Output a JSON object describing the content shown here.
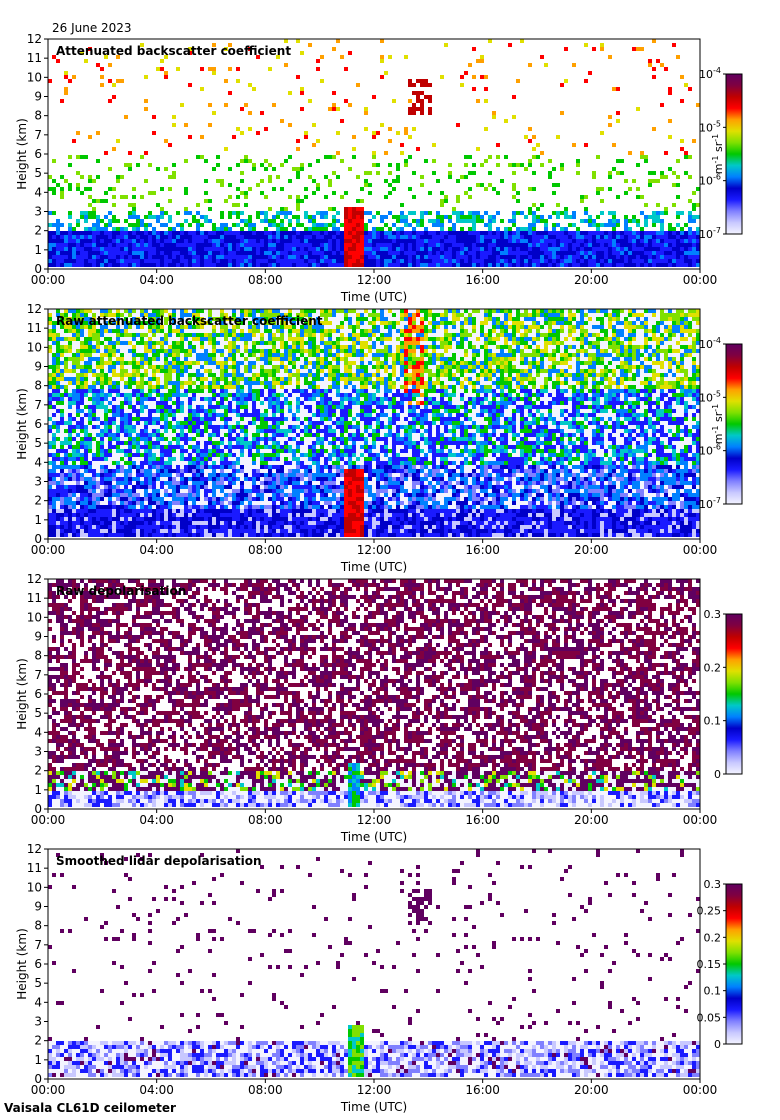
{
  "header": {
    "date": "26 June 2023"
  },
  "footer": {
    "instrument": "Vaisala CL61D ceilometer"
  },
  "colors": {
    "seq": [
      "#f4f4ff",
      "#c8c8ff",
      "#8080ff",
      "#1a1aff",
      "#0000c8",
      "#0080ff",
      "#00c8c8",
      "#00c800",
      "#80e000",
      "#e0e000",
      "#ffa000",
      "#ff0000",
      "#c00000",
      "#800040",
      "#600060"
    ]
  },
  "chart_data": [
    {
      "type": "heatmap",
      "title": "Attenuated backscatter coefficient",
      "xlabel": "Time (UTC)",
      "ylabel": "Height (km)",
      "x_ticks": [
        "00:00",
        "04:00",
        "08:00",
        "12:00",
        "16:00",
        "20:00",
        "00:00"
      ],
      "y_ticks": [
        "0",
        "1",
        "2",
        "3",
        "4",
        "5",
        "6",
        "7",
        "8",
        "9",
        "10",
        "11",
        "12"
      ],
      "ylim": [
        0,
        12
      ],
      "colorbar": {
        "scale": "log",
        "labels": [
          "10-7",
          "10-6",
          "10-5",
          "10-4"
        ],
        "range": [
          1e-07,
          0.0001
        ],
        "unit": "m-1 sr-1"
      }
    },
    {
      "type": "heatmap",
      "title": "Raw attenuated backscatter coefficient",
      "xlabel": "Time (UTC)",
      "ylabel": "Height (km)",
      "x_ticks": [
        "00:00",
        "04:00",
        "08:00",
        "12:00",
        "16:00",
        "20:00",
        "00:00"
      ],
      "y_ticks": [
        "0",
        "1",
        "2",
        "3",
        "4",
        "5",
        "6",
        "7",
        "8",
        "9",
        "10",
        "11",
        "12"
      ],
      "ylim": [
        0,
        12
      ],
      "colorbar": {
        "scale": "log",
        "labels": [
          "10-7",
          "10-6",
          "10-5",
          "10-4"
        ],
        "range": [
          1e-07,
          0.0001
        ],
        "unit": "m-1 sr-1"
      }
    },
    {
      "type": "heatmap",
      "title": "Raw depolarisation",
      "xlabel": "Time (UTC)",
      "ylabel": "Height (km)",
      "x_ticks": [
        "00:00",
        "04:00",
        "08:00",
        "12:00",
        "16:00",
        "20:00",
        "00:00"
      ],
      "y_ticks": [
        "0",
        "1",
        "2",
        "3",
        "4",
        "5",
        "6",
        "7",
        "8",
        "9",
        "10",
        "11",
        "12"
      ],
      "ylim": [
        0,
        12
      ],
      "colorbar": {
        "scale": "linear",
        "labels": [
          "0",
          "0.1",
          "0.2",
          "0.3"
        ],
        "range": [
          0,
          0.3
        ],
        "unit": ""
      }
    },
    {
      "type": "heatmap",
      "title": "Smoothed lidar depolarisation",
      "xlabel": "Time (UTC)",
      "ylabel": "Height (km)",
      "x_ticks": [
        "00:00",
        "04:00",
        "08:00",
        "12:00",
        "16:00",
        "20:00",
        "00:00"
      ],
      "y_ticks": [
        "0",
        "1",
        "2",
        "3",
        "4",
        "5",
        "6",
        "7",
        "8",
        "9",
        "10",
        "11",
        "12"
      ],
      "ylim": [
        0,
        12
      ],
      "colorbar": {
        "scale": "linear",
        "labels": [
          "0",
          "0.05",
          "0.1",
          "0.15",
          "0.2",
          "0.25",
          "0.3"
        ],
        "range": [
          0,
          0.3
        ],
        "unit": ""
      }
    }
  ]
}
